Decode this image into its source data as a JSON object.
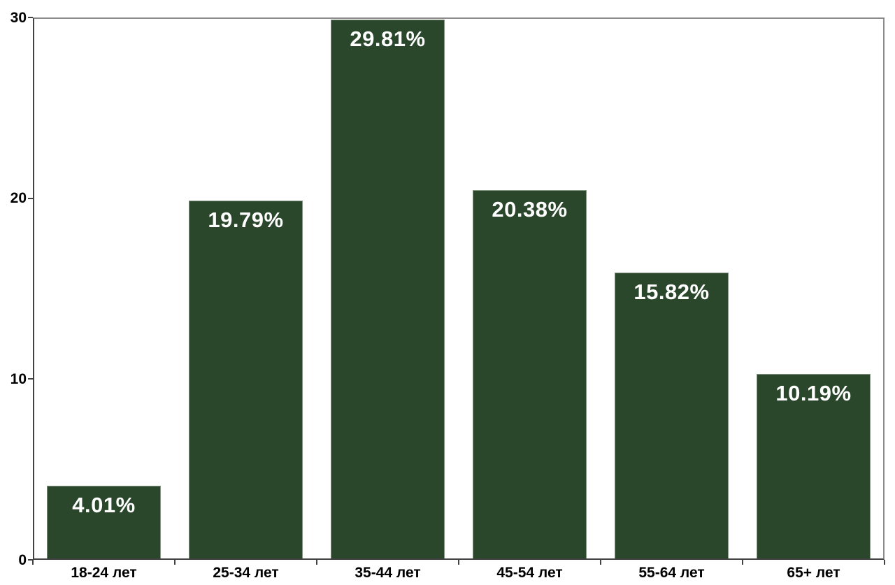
{
  "chart_data": {
    "type": "bar",
    "title": "",
    "xlabel": "",
    "ylabel": "",
    "categories": [
      "18-24 лет",
      "25-34 лет",
      "35-44 лет",
      "45-54 лет",
      "55-64 лет",
      "65+ лет"
    ],
    "values": [
      4.01,
      19.79,
      29.81,
      20.38,
      15.82,
      10.19
    ],
    "value_labels": [
      "4.01%",
      "19.79%",
      "29.81%",
      "20.38%",
      "15.82%",
      "10.19%"
    ],
    "y_ticks": [
      0,
      10,
      20,
      30
    ],
    "y_tick_labels": [
      "0",
      "10",
      "20",
      "30"
    ],
    "ylim": [
      0,
      30
    ],
    "grid": false,
    "legend_position": "none",
    "colors": {
      "bar_fill": "#2a472b",
      "value_label_text": "#ffffff",
      "axis_line": "#424242",
      "frame_line": "#8b8b8b",
      "tick_label_text": "#000000",
      "background": "#ffffff"
    }
  }
}
